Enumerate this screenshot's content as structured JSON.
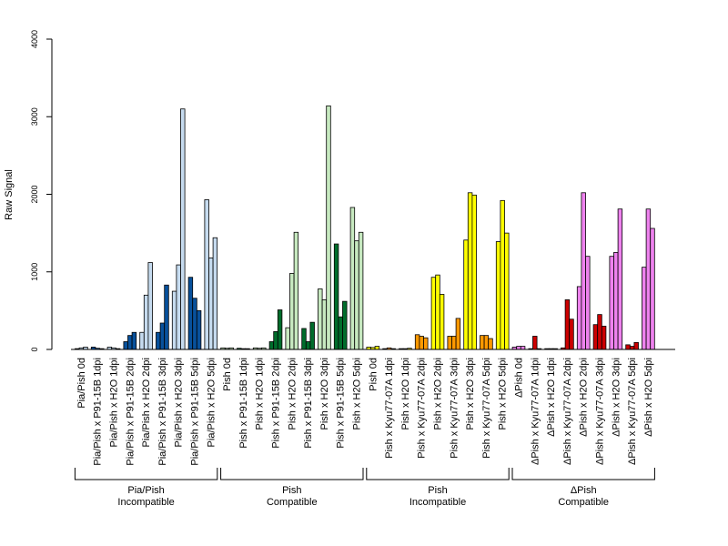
{
  "chart_data": {
    "type": "bar",
    "title": "",
    "ylabel": "Raw Signal",
    "xlabel": "",
    "ylim": [
      0,
      4000
    ],
    "yticks": [
      0,
      1000,
      2000,
      3000,
      4000
    ],
    "grid": false,
    "legend": "none",
    "categories": [
      "Pia/Pish 0d",
      "Pia/Pish x P91-15B 1dpi",
      "Pia/Pish x H2O 1dpi",
      "Pia/Pish x P91-15B 2dpi",
      "Pia/Pish x H2O 2dpi",
      "Pia/Pish x P91-15B 3dpi",
      "Pia/Pish x H2O 3dpi",
      "Pia/Pish x P91-15B 5dpi",
      "Pia/Pish x H2O 5dpi",
      "Pish 0d",
      "Pish x P91-15B 1dpi",
      "Pish x H2O 1dpi",
      "Pish x P91-15B 2dpi",
      "Pish x H2O 2dpi",
      "Pish x P91-15B 3dpi",
      "Pish x H2O 3dpi",
      "Pish x P91-15B 5dpi",
      "Pish x H2O 5dpi",
      "Pish 0d",
      "Pish x Kyu77-07A 1dpi",
      "Pish x H2O 1dpi",
      "Pish x Kyu77-07A 2dpi",
      "Pish x H2O 2dpi",
      "Pish x Kyu77-07A 3dpi",
      "Pish x H2O 3dpi",
      "Pish x Kyu77-07A 5dpi",
      "Pish x H2O 5dpi",
      "ΔPish 0d",
      "ΔPish x Kyu77-07A 1dpi",
      "ΔPish x H2O 1dpi",
      "ΔPish x Kyu77-07A 2dpi",
      "ΔPish x H2O 2dpi",
      "ΔPish x Kyu77-07A 3dpi",
      "ΔPish x H2O 3dpi",
      "ΔPish x Kyu77-07A 5dpi",
      "ΔPish x H2O 5dpi"
    ],
    "colors": [
      "#c6dbef",
      "#08519c",
      "#c6dbef",
      "#08519c",
      "#c6dbef",
      "#08519c",
      "#c6dbef",
      "#08519c",
      "#c6dbef",
      "#c7e9c0",
      "#006d2c",
      "#c7e9c0",
      "#006d2c",
      "#c7e9c0",
      "#006d2c",
      "#c7e9c0",
      "#006d2c",
      "#c7e9c0",
      "#ffff00",
      "#ff9900",
      "#ffff00",
      "#ff9900",
      "#ffff00",
      "#ff9900",
      "#ffff00",
      "#ff9900",
      "#ffff00",
      "#ee82ee",
      "#cc0000",
      "#ee82ee",
      "#cc0000",
      "#ee82ee",
      "#cc0000",
      "#ee82ee",
      "#cc0000",
      "#ee82ee"
    ],
    "replicates": [
      [
        10,
        20,
        30
      ],
      [
        30,
        15,
        10
      ],
      [
        30,
        20,
        10
      ],
      [
        100,
        180,
        220
      ],
      [
        220,
        700,
        1120
      ],
      [
        220,
        340,
        830
      ],
      [
        750,
        1090,
        3100
      ],
      [
        930,
        660,
        500
      ],
      [
        1930,
        1180,
        1440
      ],
      [
        20,
        15,
        20
      ],
      [
        15,
        10,
        10
      ],
      [
        20,
        15,
        20
      ],
      [
        100,
        230,
        510
      ],
      [
        280,
        980,
        1510
      ],
      [
        270,
        100,
        350
      ],
      [
        780,
        640,
        3140
      ],
      [
        1360,
        420,
        620
      ],
      [
        1830,
        1400,
        1510
      ],
      [
        30,
        25,
        40
      ],
      [
        10,
        20,
        10
      ],
      [
        10,
        10,
        15
      ],
      [
        190,
        170,
        150
      ],
      [
        930,
        960,
        710
      ],
      [
        170,
        170,
        400
      ],
      [
        1410,
        2020,
        1990
      ],
      [
        180,
        180,
        140
      ],
      [
        1390,
        1920,
        1500
      ],
      [
        30,
        40,
        40
      ],
      [
        10,
        170,
        10
      ],
      [
        10,
        10,
        10
      ],
      [
        20,
        640,
        390
      ],
      [
        810,
        2020,
        1200
      ],
      [
        320,
        450,
        300
      ],
      [
        1200,
        1250,
        1810
      ],
      [
        60,
        40,
        90
      ],
      [
        1060,
        1810,
        1560
      ]
    ],
    "groups": [
      {
        "line1": "Pia/Pish",
        "line2": "Incompatible",
        "start": 0,
        "end": 8
      },
      {
        "line1": "Pish",
        "line2": "Compatible",
        "start": 9,
        "end": 17
      },
      {
        "line1": "Pish",
        "line2": "Incompatible",
        "start": 18,
        "end": 26
      },
      {
        "line1": "ΔPish",
        "line2": "Compatible",
        "start": 27,
        "end": 35
      }
    ]
  }
}
